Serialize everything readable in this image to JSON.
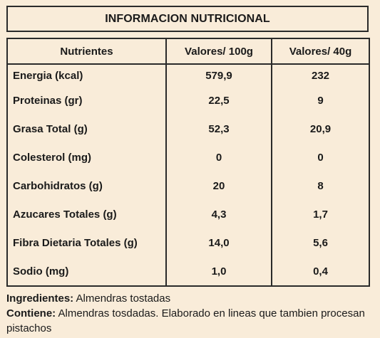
{
  "title": "INFORMACION NUTRICIONAL",
  "headers": [
    "Nutrientes",
    "Valores/ 100g",
    "Valores/ 40g"
  ],
  "rows": [
    {
      "name": "Energia (kcal)",
      "v100": "579,9",
      "v40": "232"
    },
    {
      "name": "Proteinas (gr)",
      "v100": "22,5",
      "v40": "9"
    },
    {
      "name": "Grasa Total (g)",
      "v100": "52,3",
      "v40": "20,9"
    },
    {
      "name": "Colesterol (mg)",
      "v100": "0",
      "v40": "0"
    },
    {
      "name": "Carbohidratos (g)",
      "v100": "20",
      "v40": "8"
    },
    {
      "name": "Azucares Totales (g)",
      "v100": "4,3",
      "v40": "1,7"
    },
    {
      "name": "Fibra Dietaria Totales (g)",
      "v100": "14,0",
      "v40": "5,6"
    },
    {
      "name": "Sodio (mg)",
      "v100": "1,0",
      "v40": "0,4"
    }
  ],
  "ingredients": {
    "label": "Ingredientes:",
    "text": "Almendras tostadas"
  },
  "contains": {
    "label": "Contiene:",
    "text": "Almendras tosdadas. Elaborado en lineas que tambien procesan pistachos"
  }
}
